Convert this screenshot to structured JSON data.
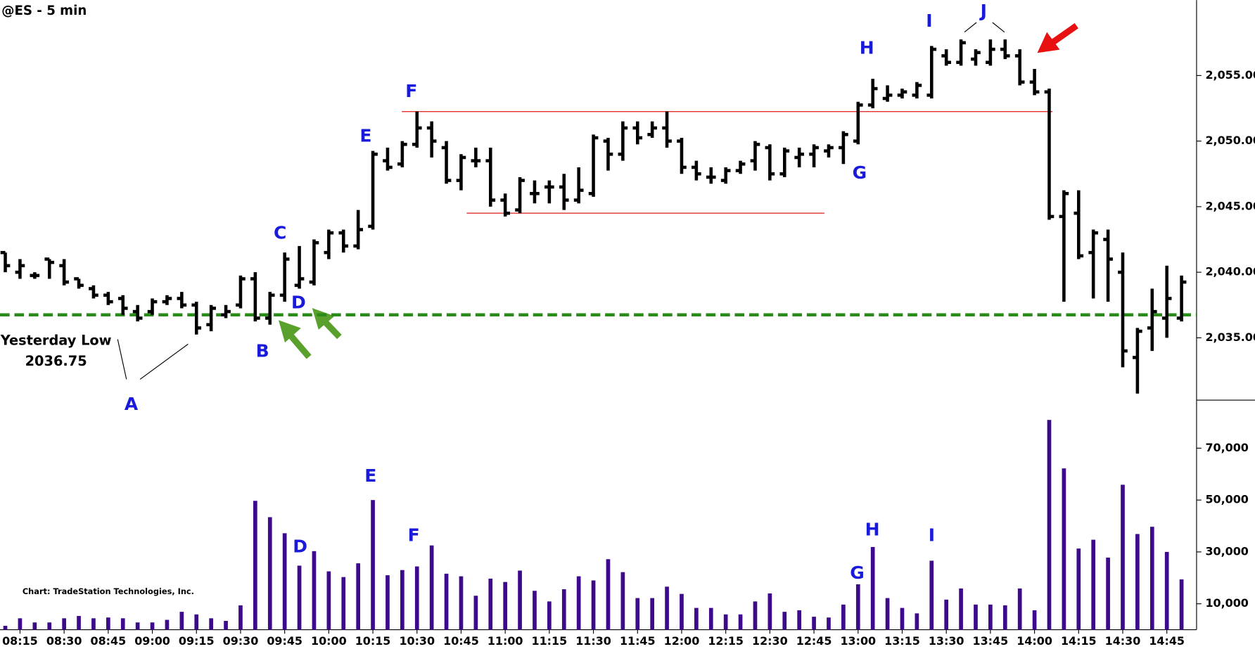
{
  "chart_data": [
    {
      "type": "ohlc",
      "title": "@ES - 5 min",
      "color": "#000000",
      "open": [
        2041.5,
        2040,
        2039.75,
        2041,
        2040.5,
        2039.5,
        2038.75,
        2038.25,
        2038,
        2037,
        2037,
        2037.75,
        2038,
        2037.5,
        2036,
        2036.75,
        2037.5,
        2039.5,
        2036.5,
        2038.25,
        2039,
        2039.25,
        2041.5,
        2043,
        2042,
        2043.5,
        2048.5,
        2048.25,
        2049.75,
        2051,
        2049.5,
        2047,
        2048.5,
        2048.5,
        2045.5,
        2044.75,
        2046,
        2046.5,
        2046.5,
        2045.5,
        2046,
        2050,
        2049,
        2051,
        2050.5,
        2051,
        2050,
        2048,
        2047.25,
        2047,
        2047.75,
        2048.5,
        2049.5,
        2047.5,
        2048.75,
        2049,
        2049.25,
        2049.5,
        2050,
        2052.75,
        2053.25,
        2053.5,
        2053.5,
        2053.5,
        2056.5,
        2056,
        2056.25,
        2056,
        2057,
        2056.5,
        2054.5,
        2053.75,
        2044.25,
        2044.5,
        2041.5,
        2042.5,
        2040,
        2033.5,
        2035.75,
        2036.5,
        2036.5
      ],
      "high": [
        2041.5,
        2041,
        2040,
        2041,
        2041,
        2039.5,
        2039,
        2038.5,
        2038.25,
        2037.5,
        2038,
        2038.25,
        2038.5,
        2037.75,
        2037.5,
        2037.5,
        2039.75,
        2040,
        2038.5,
        2041.5,
        2042,
        2042.5,
        2043.25,
        2043.25,
        2044.75,
        2049.25,
        2049.5,
        2050,
        2052.25,
        2051.5,
        2050,
        2049,
        2049.5,
        2049.5,
        2046,
        2047.25,
        2047,
        2047,
        2047.5,
        2048,
        2050.5,
        2050.25,
        2051.5,
        2051.5,
        2051.5,
        2052.25,
        2050.25,
        2048.5,
        2048,
        2048,
        2048.5,
        2050,
        2049.75,
        2049.5,
        2049.5,
        2049.75,
        2049.75,
        2050.75,
        2053,
        2054.75,
        2054.25,
        2054,
        2054.5,
        2057.25,
        2057,
        2057.75,
        2057,
        2057.75,
        2057.75,
        2057,
        2055.5,
        2054,
        2046.25,
        2046.25,
        2043.25,
        2043.25,
        2041.5,
        2035.75,
        2038.75,
        2040.5,
        2039.75
      ],
      "low": [
        2040,
        2039.5,
        2039.5,
        2039.5,
        2039,
        2038.75,
        2038,
        2037.5,
        2036.75,
        2036.25,
        2036.75,
        2037.5,
        2037.25,
        2035.25,
        2035.5,
        2036.5,
        2037.25,
        2036.25,
        2036,
        2037.75,
        2038.75,
        2039,
        2041,
        2041.5,
        2041.75,
        2043.25,
        2047.75,
        2048,
        2049.5,
        2048.75,
        2046.75,
        2046.25,
        2048,
        2045,
        2044.25,
        2044.5,
        2045.25,
        2045.25,
        2044.75,
        2045.25,
        2045.75,
        2047.75,
        2048.5,
        2049.75,
        2050.25,
        2049.5,
        2047.5,
        2047,
        2046.75,
        2046.75,
        2047.5,
        2047.75,
        2047,
        2047.25,
        2048,
        2048,
        2048.75,
        2048.25,
        2049.75,
        2052.5,
        2053,
        2053.25,
        2053.25,
        2053.25,
        2055.75,
        2055.75,
        2055.75,
        2055.75,
        2056.25,
        2054.25,
        2053.5,
        2044,
        2037.75,
        2041,
        2038,
        2037.75,
        2032.75,
        2030.75,
        2034,
        2035,
        2036.25
      ],
      "close": [
        2040.5,
        2040.5,
        2039.75,
        2040.75,
        2039.25,
        2039,
        2038.25,
        2037.75,
        2037.25,
        2036.5,
        2037.75,
        2038,
        2037.5,
        2035.75,
        2037.25,
        2037,
        2039.5,
        2036.5,
        2038.25,
        2041,
        2039.5,
        2042.25,
        2043,
        2042,
        2043.25,
        2049,
        2048,
        2049.75,
        2051,
        2050,
        2047,
        2048.75,
        2048.5,
        2045.5,
        2044.5,
        2047,
        2046,
        2046.5,
        2045.5,
        2046.25,
        2050.25,
        2049,
        2051,
        2050.25,
        2051,
        2050,
        2048,
        2047.5,
        2047.25,
        2047.75,
        2048.25,
        2049.75,
        2047.5,
        2049.25,
        2049,
        2049.5,
        2049.5,
        2050.5,
        2052.75,
        2054,
        2053.5,
        2053.75,
        2054.25,
        2057,
        2056,
        2057.5,
        2056.75,
        2057,
        2056.5,
        2054.5,
        2053.75,
        2044.25,
        2046,
        2041.25,
        2043,
        2041,
        2034,
        2035.5,
        2037,
        2038,
        2039.25
      ],
      "ylim": [
        2030.25,
        2060.75
      ],
      "yticks": [
        {
          "value": 2035,
          "label": "2,035.00"
        },
        {
          "value": 2040,
          "label": "2,040.00"
        },
        {
          "value": 2045,
          "label": "2,045.00"
        },
        {
          "value": 2050,
          "label": "2,050.00"
        },
        {
          "value": 2055,
          "label": "2,055.00"
        }
      ],
      "reference_line": {
        "label": "Yesterday Low",
        "value": 2036.75,
        "color": "#2a8a1a"
      },
      "lines": [
        2052.25,
        2044.5
      ],
      "lines_color": "#e03030",
      "annotations": [
        "A",
        "B",
        "C",
        "D",
        "E",
        "F",
        "G",
        "H",
        "I",
        "J"
      ]
    },
    {
      "type": "bar",
      "color": "#3d0a8c",
      "note": "Chart: TradeStation Technologies, Inc.",
      "categories": [
        null,
        "08:15",
        null,
        null,
        "08:30",
        null,
        null,
        "08:45",
        null,
        null,
        "09:00",
        null,
        null,
        "09:15",
        null,
        null,
        "09:30",
        null,
        null,
        "09:45",
        null,
        null,
        "10:00",
        null,
        null,
        "10:15",
        null,
        null,
        "10:30",
        null,
        null,
        "10:45",
        null,
        null,
        "11:00",
        null,
        null,
        "11:15",
        null,
        null,
        "11:30",
        null,
        null,
        "11:45",
        null,
        null,
        "12:00",
        null,
        null,
        "12:15",
        null,
        null,
        "12:30",
        null,
        null,
        "12:45",
        null,
        null,
        "13:00",
        null,
        null,
        "13:15",
        null,
        null,
        "13:30",
        null,
        null,
        "13:45",
        null,
        null,
        "14:00",
        null,
        null,
        "14:15",
        null,
        null,
        "14:30",
        null,
        null,
        "14:45",
        null
      ],
      "values": [
        1500,
        4400,
        2800,
        2800,
        4400,
        5300,
        4400,
        4700,
        4400,
        2800,
        2800,
        3800,
        6900,
        5900,
        4400,
        3400,
        9400,
        49700,
        43400,
        37200,
        24700,
        30300,
        22500,
        20300,
        25600,
        50000,
        21000,
        23000,
        24400,
        32500,
        21600,
        20600,
        13100,
        19700,
        18400,
        22800,
        15000,
        10900,
        15600,
        20600,
        19000,
        27200,
        22200,
        12200,
        12200,
        16600,
        13800,
        8400,
        8400,
        5900,
        5900,
        10900,
        14000,
        6900,
        7500,
        5000,
        4700,
        9700,
        17500,
        31900,
        12200,
        8400,
        6300,
        26600,
        11600,
        15900,
        9700,
        9700,
        9400,
        15900,
        7500,
        80900,
        62200,
        31300,
        34700,
        27800,
        55900,
        36900,
        39700,
        30000,
        19400
      ],
      "ylim": [
        0,
        87000
      ],
      "yticks": [
        {
          "value": 10000,
          "label": "10,000"
        },
        {
          "value": 30000,
          "label": "30,000"
        },
        {
          "value": 50000,
          "label": "50,000"
        },
        {
          "value": 70000,
          "label": "70,000"
        }
      ],
      "annotations": [
        "D",
        "E",
        "F",
        "G",
        "H",
        "I"
      ]
    }
  ]
}
